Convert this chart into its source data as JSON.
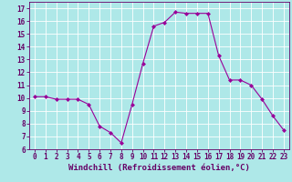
{
  "x": [
    0,
    1,
    2,
    3,
    4,
    5,
    6,
    7,
    8,
    9,
    10,
    11,
    12,
    13,
    14,
    15,
    16,
    17,
    18,
    19,
    20,
    21,
    22,
    23
  ],
  "y": [
    10.1,
    10.1,
    9.9,
    9.9,
    9.9,
    9.5,
    7.8,
    7.3,
    6.5,
    9.5,
    12.7,
    15.6,
    15.9,
    16.7,
    16.6,
    16.6,
    16.6,
    13.3,
    11.4,
    11.4,
    11.0,
    9.9,
    8.6,
    7.5
  ],
  "line_color": "#990099",
  "marker": "D",
  "marker_size": 2,
  "bg_color": "#aee8e8",
  "grid_color": "#ffffff",
  "xlabel": "Windchill (Refroidissement éolien,°C)",
  "xlabel_color": "#660066",
  "tick_color": "#660066",
  "xlim": [
    -0.5,
    23.5
  ],
  "ylim": [
    6,
    17.5
  ],
  "yticks": [
    6,
    7,
    8,
    9,
    10,
    11,
    12,
    13,
    14,
    15,
    16,
    17
  ],
  "xticks": [
    0,
    1,
    2,
    3,
    4,
    5,
    6,
    7,
    8,
    9,
    10,
    11,
    12,
    13,
    14,
    15,
    16,
    17,
    18,
    19,
    20,
    21,
    22,
    23
  ],
  "label_fontsize": 6.5,
  "tick_fontsize": 5.5
}
